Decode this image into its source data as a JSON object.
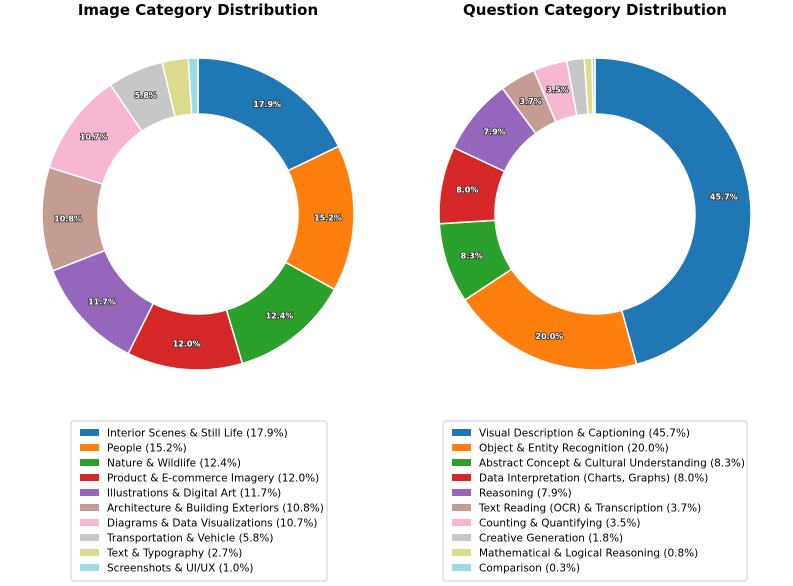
{
  "chart_data": [
    {
      "type": "pie",
      "title": "Image Category Distribution",
      "categories": [
        "Interior Scenes & Still Life",
        "People",
        "Nature & Wildlife",
        "Product & E-commerce Imagery",
        "Illustrations & Digital Art",
        "Architecture & Building Exteriors",
        "Diagrams & Data Visualizations",
        "Transportation & Vehicle",
        "Text & Typography",
        "Screenshots & UI/UX"
      ],
      "values": [
        17.9,
        15.2,
        12.4,
        12.0,
        11.7,
        10.8,
        10.7,
        5.8,
        2.7,
        1.0
      ],
      "slice_labels": [
        "17.9%",
        "15.2%",
        "12.4%",
        "12.0%",
        "11.7%",
        "10.8%",
        "10.7%",
        "5.8%",
        "",
        ""
      ],
      "legend_labels": [
        "Interior Scenes & Still Life (17.9%)",
        "People (15.2%)",
        "Nature & Wildlife (12.4%)",
        "Product & E-commerce Imagery (12.0%)",
        "Illustrations & Digital Art (11.7%)",
        "Architecture & Building Exteriors (10.8%)",
        "Diagrams & Data Visualizations (10.7%)",
        "Transportation & Vehicle (5.8%)",
        "Text & Typography (2.7%)",
        "Screenshots & UI/UX (1.0%)"
      ],
      "colors": [
        "#1f77b4",
        "#ff7f0e",
        "#2ca02c",
        "#d62728",
        "#9467bd",
        "#c49c94",
        "#f7b6d2",
        "#c7c7c7",
        "#dbdb8d",
        "#9edae5"
      ],
      "donut": true,
      "legend": "bottom"
    },
    {
      "type": "pie",
      "title": "Question Category Distribution",
      "categories": [
        "Visual Description & Captioning",
        "Object & Entity Recognition",
        "Abstract Concept & Cultural Understanding",
        "Data Interpretation (Charts, Graphs)",
        "Reasoning",
        "Text Reading (OCR) & Transcription",
        "Counting & Quantifying",
        "Creative Generation",
        "Mathematical & Logical Reasoning",
        "Comparison"
      ],
      "values": [
        45.7,
        20.0,
        8.3,
        8.0,
        7.9,
        3.7,
        3.5,
        1.8,
        0.8,
        0.3
      ],
      "slice_labels": [
        "45.7%",
        "20.0%",
        "8.3%",
        "8.0%",
        "7.9%",
        "3.7%",
        "3.5%",
        "",
        "",
        ""
      ],
      "legend_labels": [
        "Visual Description & Captioning (45.7%)",
        "Object & Entity Recognition (20.0%)",
        "Abstract Concept & Cultural Understanding (8.3%)",
        "Data Interpretation (Charts, Graphs) (8.0%)",
        "Reasoning (7.9%)",
        "Text Reading (OCR) & Transcription (3.7%)",
        "Counting & Quantifying (3.5%)",
        "Creative Generation (1.8%)",
        "Mathematical & Logical Reasoning (0.8%)",
        "Comparison (0.3%)"
      ],
      "colors": [
        "#1f77b4",
        "#ff7f0e",
        "#2ca02c",
        "#d62728",
        "#9467bd",
        "#c49c94",
        "#f7b6d2",
        "#c7c7c7",
        "#dbdb8d",
        "#9edae5"
      ],
      "donut": true,
      "legend": "bottom"
    }
  ]
}
